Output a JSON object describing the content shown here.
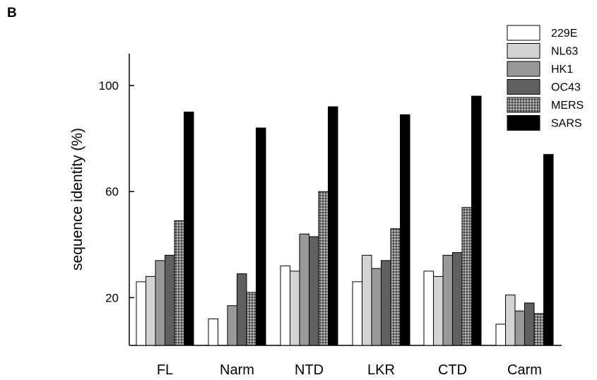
{
  "panel_label": "B",
  "chart_data": {
    "type": "bar",
    "title": "",
    "xlabel": "",
    "ylabel": "sequence identity (%)",
    "ylim": [
      2,
      112
    ],
    "yticks": [
      20,
      60,
      100
    ],
    "categories": [
      "FL",
      "Narm",
      "NTD",
      "LKR",
      "CTD",
      "Carm"
    ],
    "series": [
      {
        "name": "229E",
        "values": [
          26,
          12,
          32,
          26,
          30,
          10
        ],
        "color": "#ffffff"
      },
      {
        "name": "NL63",
        "values": [
          28,
          null,
          30,
          36,
          28,
          21
        ],
        "color": "#d3d3d3"
      },
      {
        "name": "HK1",
        "values": [
          34,
          17,
          44,
          31,
          36,
          15
        ],
        "color": "#999999"
      },
      {
        "name": "OC43",
        "values": [
          36,
          29,
          43,
          34,
          37,
          18
        ],
        "color": "#606060"
      },
      {
        "name": "MERS",
        "values": [
          49,
          22,
          60,
          46,
          54,
          14
        ],
        "color": "#7a7a7a",
        "pattern": "dots"
      },
      {
        "name": "SARS",
        "values": [
          90,
          84,
          92,
          89,
          96,
          74
        ],
        "color": "#000000"
      }
    ],
    "grid": false,
    "legend_position": "top-right"
  }
}
